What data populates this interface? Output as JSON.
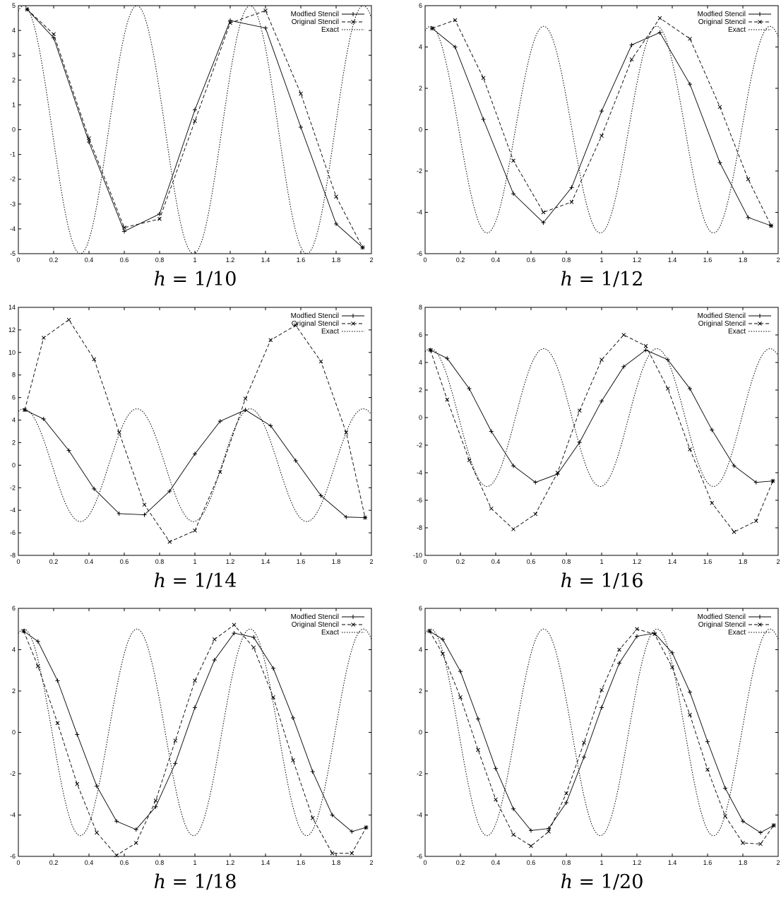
{
  "chart_data": [
    {
      "type": "line",
      "caption_var": "h",
      "caption_value": "1/10",
      "xlim": [
        0,
        2
      ],
      "ylim": [
        -5,
        5
      ],
      "xticks": [
        "0",
        "0.2",
        "0.4",
        "0.6",
        "0.8",
        "1",
        "1.2",
        "1.4",
        "1.6",
        "1.8",
        "2"
      ],
      "yticks": [
        "-5",
        "-4",
        "-3",
        "-2",
        "-1",
        "0",
        "1",
        "2",
        "3",
        "4",
        "5"
      ],
      "legend_position": "top-right",
      "series": [
        {
          "name": "Modfied Stencil",
          "style": "solid",
          "marker": "plus",
          "x": [
            0.05,
            0.2,
            0.4,
            0.6,
            0.8,
            1.0,
            1.2,
            1.4,
            1.6,
            1.8,
            1.95
          ],
          "y": [
            4.85,
            3.7,
            -0.5,
            -4.1,
            -3.4,
            0.8,
            4.4,
            4.1,
            0.1,
            -3.8,
            -4.75
          ]
        },
        {
          "name": "Original Stencil",
          "style": "dashed",
          "marker": "cross",
          "x": [
            0.05,
            0.2,
            0.4,
            0.6,
            0.8,
            1.0,
            1.2,
            1.4,
            1.6,
            1.8,
            1.95
          ],
          "y": [
            4.85,
            3.85,
            -0.35,
            -3.95,
            -3.6,
            0.35,
            4.3,
            4.8,
            1.45,
            -2.7,
            -4.75
          ]
        },
        {
          "name": "Exact",
          "style": "dotted",
          "marker": "none",
          "func": {
            "A": 5,
            "w": 9.8,
            "phi": 0.3
          }
        }
      ]
    },
    {
      "type": "line",
      "caption_var": "h",
      "caption_value": "1/12",
      "xlim": [
        0,
        2
      ],
      "ylim": [
        -6,
        6
      ],
      "xticks": [
        "0",
        "0.2",
        "0.4",
        "0.6",
        "0.8",
        "1",
        "1.2",
        "1.4",
        "1.6",
        "1.8",
        "2"
      ],
      "yticks": [
        "-6",
        "-4",
        "-2",
        "0",
        "2",
        "4",
        "6"
      ],
      "legend_position": "top-right",
      "series": [
        {
          "name": "Modfied Stencil",
          "style": "solid",
          "marker": "plus",
          "x": [
            0.04,
            0.17,
            0.33,
            0.5,
            0.67,
            0.83,
            1.0,
            1.17,
            1.33,
            1.5,
            1.67,
            1.83,
            1.96
          ],
          "y": [
            4.9,
            4.0,
            0.5,
            -3.1,
            -4.5,
            -2.8,
            0.9,
            4.1,
            4.7,
            2.2,
            -1.6,
            -4.25,
            -4.65
          ]
        },
        {
          "name": "Original Stencil",
          "style": "dashed",
          "marker": "cross",
          "x": [
            0.04,
            0.17,
            0.33,
            0.5,
            0.67,
            0.83,
            1.0,
            1.17,
            1.33,
            1.5,
            1.67,
            1.83,
            1.96
          ],
          "y": [
            4.9,
            5.3,
            2.5,
            -1.5,
            -4.0,
            -3.5,
            -0.3,
            3.4,
            5.4,
            4.4,
            1.1,
            -2.4,
            -4.65
          ]
        },
        {
          "name": "Exact",
          "style": "dotted",
          "marker": "none",
          "func": {
            "A": 5,
            "w": 9.8,
            "phi": 0.3
          }
        }
      ]
    },
    {
      "type": "line",
      "caption_var": "h",
      "caption_value": "1/14",
      "xlim": [
        0,
        2
      ],
      "ylim": [
        -8,
        14
      ],
      "xticks": [
        "0",
        "0.2",
        "0.4",
        "0.6",
        "0.8",
        "1",
        "1.2",
        "1.4",
        "1.6",
        "1.8",
        "2"
      ],
      "yticks": [
        "-8",
        "-6",
        "-4",
        "-2",
        "0",
        "2",
        "4",
        "6",
        "8",
        "10",
        "12",
        "14"
      ],
      "legend_position": "top-right",
      "series": [
        {
          "name": "Modfied Stencil",
          "style": "solid",
          "marker": "plus",
          "x": [
            0.036,
            0.143,
            0.286,
            0.429,
            0.571,
            0.714,
            0.857,
            1.0,
            1.143,
            1.286,
            1.429,
            1.571,
            1.714,
            1.857,
            1.964
          ],
          "y": [
            4.9,
            4.1,
            1.3,
            -2.1,
            -4.3,
            -4.4,
            -2.3,
            1.0,
            3.9,
            4.9,
            3.5,
            0.4,
            -2.7,
            -4.6,
            -4.65
          ]
        },
        {
          "name": "Original Stencil",
          "style": "dashed",
          "marker": "cross",
          "x": [
            0.036,
            0.143,
            0.286,
            0.429,
            0.571,
            0.714,
            0.857,
            1.0,
            1.143,
            1.286,
            1.429,
            1.571,
            1.714,
            1.857,
            1.964
          ],
          "y": [
            4.9,
            11.3,
            12.9,
            9.4,
            2.9,
            -3.5,
            -6.8,
            -5.8,
            -0.6,
            5.9,
            11.1,
            12.4,
            9.2,
            2.9,
            -4.65
          ]
        },
        {
          "name": "Exact",
          "style": "dotted",
          "marker": "none",
          "func": {
            "A": 5,
            "w": 9.8,
            "phi": 0.3
          }
        }
      ]
    },
    {
      "type": "line",
      "caption_var": "h",
      "caption_value": "1/16",
      "xlim": [
        0,
        2
      ],
      "ylim": [
        -10,
        8
      ],
      "xticks": [
        "0",
        "0.2",
        "0.4",
        "0.6",
        "0.8",
        "1",
        "1.2",
        "1.4",
        "1.6",
        "1.8",
        "2"
      ],
      "yticks": [
        "-10",
        "-8",
        "-6",
        "-4",
        "-2",
        "0",
        "2",
        "4",
        "6",
        "8"
      ],
      "legend_position": "top-right",
      "series": [
        {
          "name": "Modfied Stencil",
          "style": "solid",
          "marker": "plus",
          "x": [
            0.03,
            0.125,
            0.25,
            0.375,
            0.5,
            0.625,
            0.75,
            0.875,
            1.0,
            1.125,
            1.25,
            1.375,
            1.5,
            1.625,
            1.75,
            1.875,
            1.97
          ],
          "y": [
            4.9,
            4.3,
            2.1,
            -1.0,
            -3.5,
            -4.7,
            -4.1,
            -1.8,
            1.2,
            3.7,
            4.9,
            4.2,
            2.1,
            -0.9,
            -3.5,
            -4.7,
            -4.6
          ]
        },
        {
          "name": "Original Stencil",
          "style": "dashed",
          "marker": "cross",
          "x": [
            0.03,
            0.125,
            0.25,
            0.375,
            0.5,
            0.625,
            0.75,
            0.875,
            1.0,
            1.125,
            1.25,
            1.375,
            1.5,
            1.625,
            1.75,
            1.875,
            1.97
          ],
          "y": [
            4.9,
            1.3,
            -3.1,
            -6.6,
            -8.1,
            -7.0,
            -4.0,
            0.5,
            4.2,
            6.0,
            5.2,
            2.1,
            -2.3,
            -6.2,
            -8.3,
            -7.5,
            -4.6
          ]
        },
        {
          "name": "Exact",
          "style": "dotted",
          "marker": "none",
          "func": {
            "A": 5,
            "w": 9.8,
            "phi": 0.3
          }
        }
      ]
    },
    {
      "type": "line",
      "caption_var": "h",
      "caption_value": "1/18",
      "xlim": [
        0,
        2
      ],
      "ylim": [
        -6,
        6
      ],
      "xticks": [
        "0",
        "0.2",
        "0.4",
        "0.6",
        "0.8",
        "1",
        "1.2",
        "1.4",
        "1.6",
        "1.8",
        "2"
      ],
      "yticks": [
        "-6",
        "-4",
        "-2",
        "0",
        "2",
        "4",
        "6"
      ],
      "legend_position": "top-right",
      "series": [
        {
          "name": "Modfied Stencil",
          "style": "solid",
          "marker": "plus",
          "x": [
            0.03,
            0.111,
            0.222,
            0.333,
            0.444,
            0.556,
            0.667,
            0.778,
            0.889,
            1.0,
            1.111,
            1.222,
            1.333,
            1.444,
            1.556,
            1.667,
            1.778,
            1.889,
            1.97
          ],
          "y": [
            4.9,
            4.4,
            2.5,
            -0.1,
            -2.6,
            -4.3,
            -4.7,
            -3.6,
            -1.5,
            1.2,
            3.5,
            4.8,
            4.6,
            3.1,
            0.7,
            -1.9,
            -4.0,
            -4.8,
            -4.6
          ]
        },
        {
          "name": "Original Stencil",
          "style": "dashed",
          "marker": "cross",
          "x": [
            0.03,
            0.111,
            0.222,
            0.333,
            0.444,
            0.556,
            0.667,
            0.778,
            0.889,
            1.0,
            1.111,
            1.222,
            1.333,
            1.444,
            1.556,
            1.667,
            1.778,
            1.889,
            1.97
          ],
          "y": [
            4.9,
            3.2,
            0.45,
            -2.5,
            -4.85,
            -5.95,
            -5.35,
            -3.3,
            -0.4,
            2.5,
            4.5,
            5.2,
            4.1,
            1.7,
            -1.35,
            -4.15,
            -5.85,
            -5.85,
            -4.6
          ]
        },
        {
          "name": "Exact",
          "style": "dotted",
          "marker": "none",
          "func": {
            "A": 5,
            "w": 9.8,
            "phi": 0.3
          }
        }
      ]
    },
    {
      "type": "line",
      "caption_var": "h",
      "caption_value": "1/20",
      "xlim": [
        0,
        2
      ],
      "ylim": [
        -6,
        6
      ],
      "xticks": [
        "0",
        "0.2",
        "0.4",
        "0.6",
        "0.8",
        "1",
        "1.2",
        "1.4",
        "1.6",
        "1.8",
        "2"
      ],
      "yticks": [
        "-6",
        "-4",
        "-2",
        "0",
        "2",
        "4",
        "6"
      ],
      "legend_position": "top-right",
      "series": [
        {
          "name": "Modfied Stencil",
          "style": "solid",
          "marker": "plus",
          "x": [
            0.025,
            0.1,
            0.2,
            0.3,
            0.4,
            0.5,
            0.6,
            0.7,
            0.8,
            0.9,
            1.0,
            1.1,
            1.2,
            1.3,
            1.4,
            1.5,
            1.6,
            1.7,
            1.8,
            1.9,
            1.975
          ],
          "y": [
            4.9,
            4.5,
            2.95,
            0.65,
            -1.75,
            -3.7,
            -4.75,
            -4.65,
            -3.4,
            -1.2,
            1.2,
            3.35,
            4.65,
            4.8,
            3.85,
            1.95,
            -0.45,
            -2.7,
            -4.3,
            -4.85,
            -4.5
          ]
        },
        {
          "name": "Original Stencil",
          "style": "dashed",
          "marker": "cross",
          "x": [
            0.025,
            0.1,
            0.2,
            0.3,
            0.4,
            0.5,
            0.6,
            0.7,
            0.8,
            0.9,
            1.0,
            1.1,
            1.2,
            1.3,
            1.4,
            1.5,
            1.6,
            1.7,
            1.8,
            1.9,
            1.975
          ],
          "y": [
            4.9,
            3.8,
            1.7,
            -0.85,
            -3.25,
            -4.95,
            -5.5,
            -4.8,
            -2.95,
            -0.5,
            2.05,
            4.0,
            5.0,
            4.75,
            3.15,
            0.85,
            -1.8,
            -4.05,
            -5.35,
            -5.4,
            -4.5
          ]
        },
        {
          "name": "Exact",
          "style": "dotted",
          "marker": "none",
          "func": {
            "A": 5,
            "w": 9.8,
            "phi": 0.3
          }
        }
      ]
    }
  ]
}
